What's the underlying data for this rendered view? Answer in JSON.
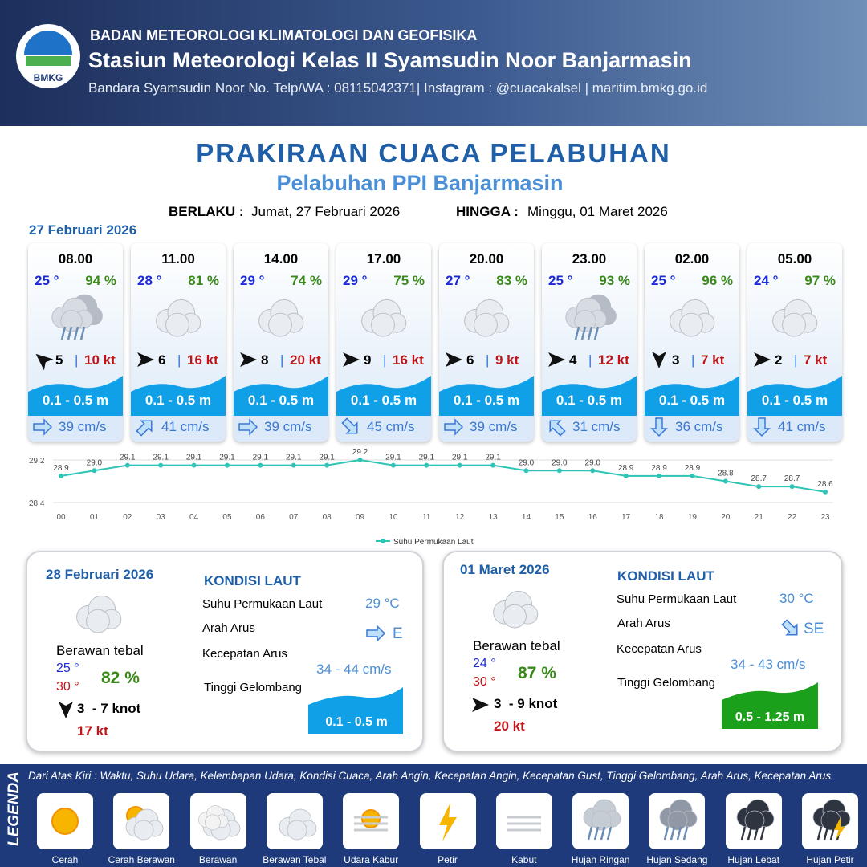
{
  "header": {
    "logo": "BMKG",
    "agency": "BADAN METEOROLOGI KLIMATOLOGI DAN GEOFISIKA",
    "station": "Stasiun Meteorologi Kelas II Syamsudin Noor Banjarmasin",
    "contact": "Bandara Syamsudin Noor No. Telp/WA : 08115042371| Instagram : @cuacakalsel | maritim.bmkg.go.id"
  },
  "title": "PRAKIRAAN CUACA PELABUHAN",
  "subtitle": "Pelabuhan PPI Banjarmasin",
  "validity": {
    "from_label": "BERLAKU :",
    "from": "Jumat, 27 Februari 2026",
    "to_label": "HINGGA :",
    "to": "Minggu, 01 Maret 2026"
  },
  "day1": {
    "date": "27 Februari 2026",
    "slots": [
      {
        "time": "08.00",
        "temp": "25 °",
        "rh": "94 %",
        "icon": "rain",
        "wind_rot": -140,
        "wind": "5",
        "gust": "10 kt",
        "wave": "0.1 - 0.5 m",
        "current_rot": 0,
        "current": "39 cm/s"
      },
      {
        "time": "11.00",
        "temp": "28 °",
        "rh": "81 %",
        "icon": "cloud",
        "wind_rot": 0,
        "wind": "6",
        "gust": "16 kt",
        "wave": "0.1 - 0.5 m",
        "current_rot": -45,
        "current": "41 cm/s"
      },
      {
        "time": "14.00",
        "temp": "29 °",
        "rh": "74 %",
        "icon": "cloud",
        "wind_rot": 0,
        "wind": "8",
        "gust": "20 kt",
        "wave": "0.1 - 0.5 m",
        "current_rot": 0,
        "current": "39 cm/s"
      },
      {
        "time": "17.00",
        "temp": "29 °",
        "rh": "75 %",
        "icon": "cloud",
        "wind_rot": 0,
        "wind": "9",
        "gust": "16 kt",
        "wave": "0.1 - 0.5 m",
        "current_rot": 45,
        "current": "45 cm/s"
      },
      {
        "time": "20.00",
        "temp": "27 °",
        "rh": "83 %",
        "icon": "cloud",
        "wind_rot": 0,
        "wind": "6",
        "gust": "9 kt",
        "wave": "0.1 - 0.5 m",
        "current_rot": 0,
        "current": "39 cm/s"
      },
      {
        "time": "23.00",
        "temp": "25 °",
        "rh": "93 %",
        "icon": "rain",
        "wind_rot": 0,
        "wind": "4",
        "gust": "12 kt",
        "wave": "0.1 - 0.5 m",
        "current_rot": -135,
        "current": "31 cm/s"
      },
      {
        "time": "02.00",
        "temp": "25 °",
        "rh": "96 %",
        "icon": "cloud",
        "wind_rot": 90,
        "wind": "3",
        "gust": "7 kt",
        "wave": "0.1 - 0.5 m",
        "current_rot": 90,
        "current": "36 cm/s"
      },
      {
        "time": "05.00",
        "temp": "24 °",
        "rh": "97 %",
        "icon": "cloud",
        "wind_rot": 0,
        "wind": "2",
        "gust": "7 kt",
        "wave": "0.1 - 0.5 m",
        "current_rot": 90,
        "current": "41 cm/s"
      }
    ]
  },
  "chart_data": {
    "type": "line",
    "categories": [
      "00",
      "01",
      "02",
      "03",
      "04",
      "05",
      "06",
      "07",
      "08",
      "09",
      "10",
      "11",
      "12",
      "13",
      "14",
      "15",
      "16",
      "17",
      "18",
      "19",
      "20",
      "21",
      "22",
      "23"
    ],
    "series": [
      {
        "name": "Suhu Permukaan Laut",
        "color": "#2ec4b6",
        "values": [
          28.9,
          29.0,
          29.1,
          29.1,
          29.1,
          29.1,
          29.1,
          29.1,
          29.1,
          29.2,
          29.1,
          29.1,
          29.1,
          29.1,
          29.0,
          29.0,
          29.0,
          28.9,
          28.9,
          28.9,
          28.8,
          28.7,
          28.7,
          28.6
        ],
        "value_labels": [
          "28.9",
          "29.0",
          "29.1",
          "29.1",
          "29.1",
          "29.1",
          "29.1",
          "29.1",
          "29.1",
          "29.2",
          "29.1",
          "29.1",
          "29.1",
          "29.1",
          "29.0",
          "29.0",
          "29.0",
          "28.9",
          "28.9",
          "28.9",
          "28.8",
          "28.7",
          "28.7",
          "28.6"
        ]
      }
    ],
    "ylim": [
      28.4,
      29.2
    ],
    "yticks": [
      28.4,
      29.2
    ]
  },
  "days": [
    {
      "date": "28 Februari 2026",
      "weather": "Berawan tebal",
      "tmin": "25 °",
      "tmax": "30 °",
      "rh": "82 %",
      "wind_rot": 90,
      "wind": "3  - 7 knot",
      "gust": "17 kt",
      "sea_title": "KONDISI LAUT",
      "sst_label": "Suhu Permukaan Laut",
      "sst": "29 °C",
      "dir_label": "Arah Arus",
      "current_rot": 0,
      "dir": "E",
      "speed_label": "Kecepatan Arus",
      "speed": "34 - 44 cm/s",
      "wave_label": "Tinggi Gelombang",
      "wave": "0.1 - 0.5 m",
      "wave_color": "#10a0e8"
    },
    {
      "date": "01 Maret 2026",
      "weather": "Berawan tebal",
      "tmin": "24 °",
      "tmax": "30 °",
      "rh": "87 %",
      "wind_rot": 0,
      "wind": "3  - 9 knot",
      "gust": "20 kt",
      "sea_title": "KONDISI LAUT",
      "sst_label": "Suhu Permukaan Laut",
      "sst": "30 °C",
      "dir_label": "Arah Arus",
      "current_rot": 45,
      "dir": "SE",
      "speed_label": "Kecepatan Arus",
      "speed": "34 - 43 cm/s",
      "wave_label": "Tinggi Gelombang",
      "wave": "0.5 - 1.25 m",
      "wave_color": "#1aa01a"
    }
  ],
  "legend": {
    "title": "LEGENDA",
    "note": "Dari Atas Kiri : Waktu, Suhu Udara, Kelembapan Udara, Kondisi Cuaca, Arah Angin, Kecepatan Angin, Kecepatan Gust, Tinggi Gelombang, Arah Arus, Kecepatan Arus",
    "items": [
      "Cerah",
      "Cerah Berawan",
      "Berawan",
      "Berawan Tebal",
      "Udara Kabur",
      "Petir",
      "Kabut",
      "Hujan Ringan",
      "Hujan Sedang",
      "Hujan Lebat",
      "Hujan Petir"
    ]
  }
}
